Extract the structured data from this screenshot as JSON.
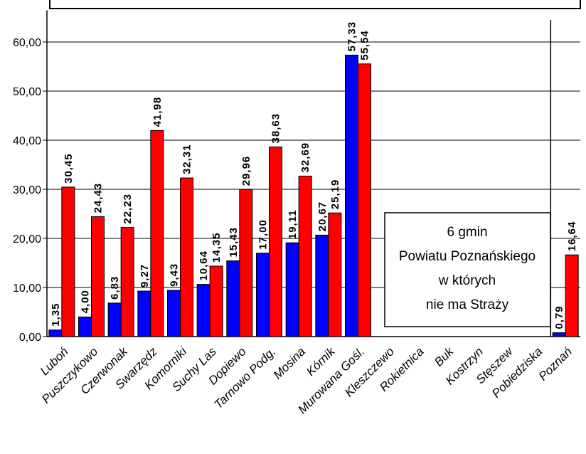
{
  "chart_data": {
    "type": "bar",
    "title": "",
    "xlabel": "",
    "ylabel": "",
    "ylim": [
      0,
      65
    ],
    "yticks": [
      "0,00",
      "10,00",
      "20,00",
      "30,00",
      "40,00",
      "50,00",
      "60,00"
    ],
    "categories": [
      "Luboń",
      "Puszczykowo",
      "Czerwonak",
      "Swarzędz",
      "Komorniki",
      "Suchy Las",
      "Dopiewo",
      "Tarnowo Podg.",
      "Mosina",
      "Kórnik",
      "Murowana Gośl.",
      "Kleszczewo",
      "Rokietnica",
      "Buk",
      "Kostrzyn",
      "Stęszew",
      "Pobiedziska",
      "Poznań"
    ],
    "series": [
      {
        "color": "#0000ff",
        "values": [
          1.35,
          4.0,
          6.83,
          9.27,
          9.43,
          10.64,
          15.43,
          17.0,
          19.11,
          20.67,
          57.33,
          null,
          null,
          null,
          null,
          null,
          null,
          0.79
        ],
        "labels": [
          "1,35",
          "4,00",
          "6,83",
          "9,27",
          "9,43",
          "10,64",
          "15,43",
          "17,00",
          "19,11",
          "20,67",
          "57,33",
          "",
          "",
          "",
          "",
          "",
          "",
          "0,79"
        ]
      },
      {
        "color": "#ff0000",
        "values": [
          30.45,
          24.43,
          22.23,
          41.98,
          32.31,
          14.35,
          29.96,
          38.63,
          32.69,
          25.19,
          55.54,
          null,
          null,
          null,
          null,
          null,
          null,
          16.64
        ],
        "labels": [
          "30,45",
          "24,43",
          "22,23",
          "41,98",
          "32,31",
          "14,35",
          "29,96",
          "38,63",
          "32,69",
          "25,19",
          "55,54",
          "",
          "",
          "",
          "",
          "",
          "",
          "16,64"
        ]
      }
    ],
    "grid": true,
    "annotation": [
      "6 gmin",
      "Powiatu Poznańskiego",
      "w których",
      "nie ma Straży"
    ]
  }
}
